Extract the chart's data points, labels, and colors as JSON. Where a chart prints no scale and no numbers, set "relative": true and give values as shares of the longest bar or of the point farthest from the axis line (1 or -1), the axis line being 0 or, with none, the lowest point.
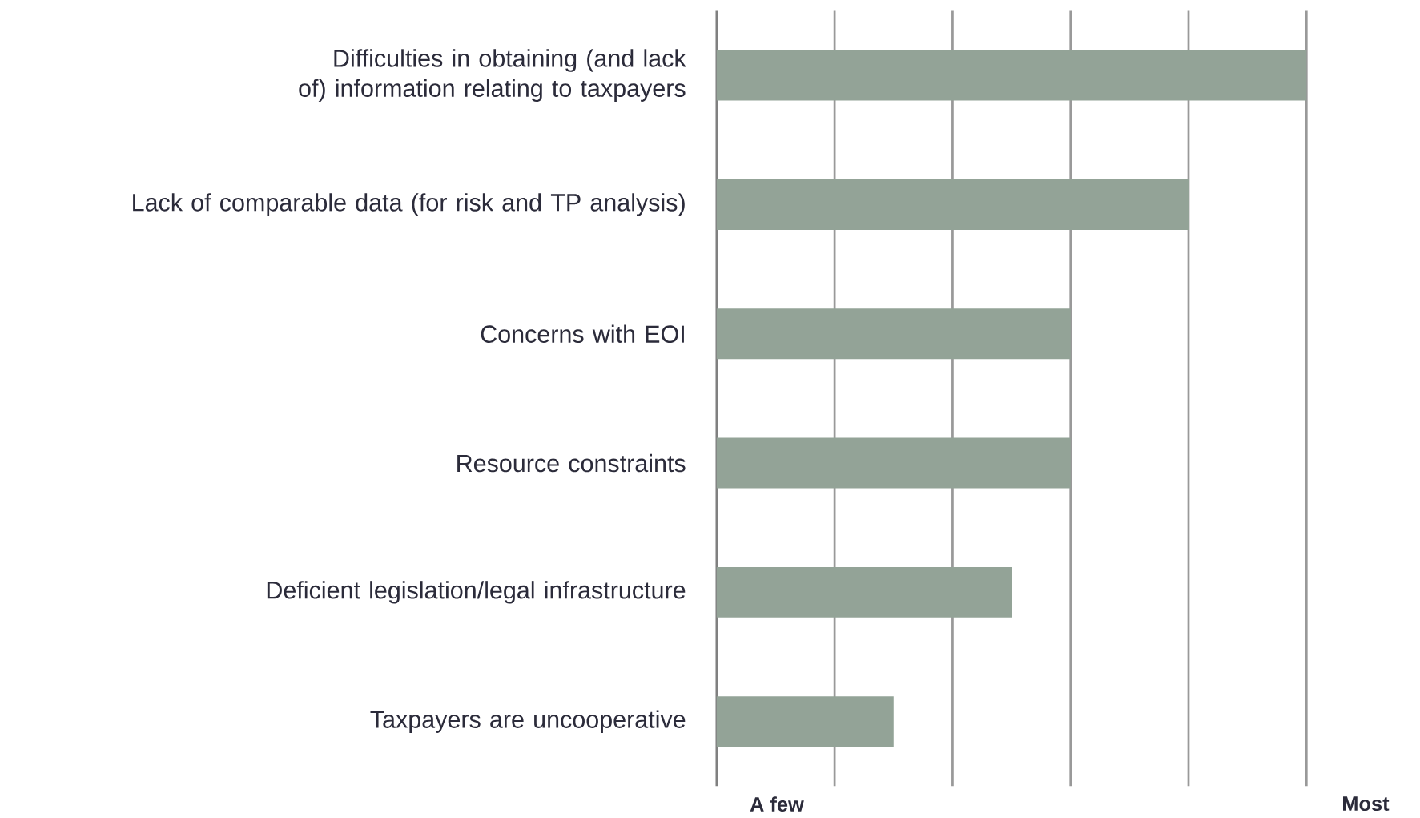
{
  "chart_data": {
    "type": "bar",
    "orientation": "horizontal",
    "relative": true,
    "grid": "x",
    "color": "#93a397",
    "categories": [
      "Difficulties in obtaining (and lack of) information relating to taxpayers",
      "Lack of comparable data (for risk and TP analysis)",
      "Concerns with EOI",
      "Resource constraints",
      "Deficient legislation/legal infrastructure",
      "Taxpayers are uncooperative"
    ],
    "values": [
      1,
      0.8,
      0.6,
      0.6,
      0.5,
      0.3
    ],
    "annotations": [
      "A few",
      "Most"
    ]
  }
}
